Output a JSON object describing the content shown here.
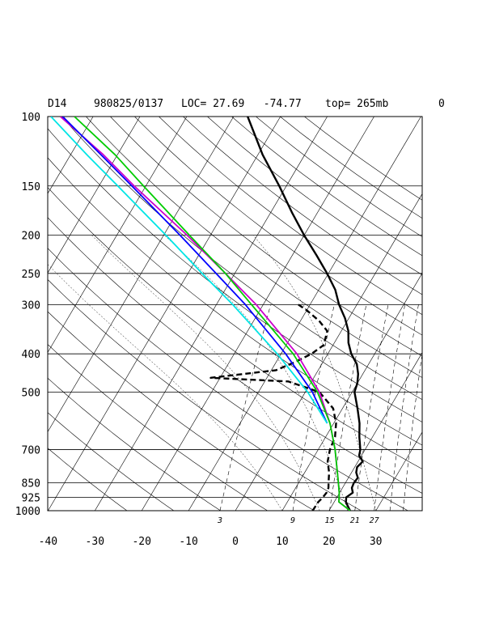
{
  "header": {
    "station": "D14",
    "datetime": "980825/0137",
    "loc_label": "LOC= 27.69   -74.77",
    "top_label": "top= 265mb",
    "extra": "0"
  },
  "chart_data": {
    "type": "line",
    "subtype": "skew-T log-P diagram",
    "title": "",
    "xlabel": "",
    "ylabel": "",
    "x_ticks": [
      -40,
      -30,
      -20,
      -10,
      0,
      10,
      20,
      30
    ],
    "x_tick_labels": [
      "-40",
      "-30",
      "-20",
      "-10",
      "0",
      "10",
      "20",
      "30"
    ],
    "y_ticks": [
      100,
      150,
      200,
      250,
      300,
      400,
      500,
      700,
      850,
      925,
      1000
    ],
    "y_tick_labels": [
      "100",
      "150",
      "200",
      "250",
      "300",
      "400",
      "500",
      "700",
      "850",
      "925",
      "1000"
    ],
    "xlim": [
      -40,
      40
    ],
    "ylim": [
      1000,
      100
    ],
    "y_scale": "log",
    "mixing_ratio_labels": [
      "3",
      "9",
      "15",
      "21",
      "27"
    ],
    "series": [
      {
        "role": "temperature",
        "color": "#000000",
        "style": "solid-thick",
        "points": [
          [
            1000,
            24.5
          ],
          [
            975,
            23.5
          ],
          [
            950,
            22.5
          ],
          [
            925,
            22.0
          ],
          [
            900,
            22.8
          ],
          [
            875,
            22.0
          ],
          [
            850,
            21.8
          ],
          [
            825,
            22.0
          ],
          [
            800,
            21.0
          ],
          [
            775,
            20.5
          ],
          [
            750,
            21.0
          ],
          [
            725,
            19.5
          ],
          [
            700,
            19.0
          ],
          [
            650,
            17.2
          ],
          [
            600,
            15.5
          ],
          [
            550,
            13.2
          ],
          [
            500,
            10.5
          ],
          [
            475,
            10.0
          ],
          [
            450,
            9.0
          ],
          [
            425,
            7.5
          ],
          [
            400,
            5.0
          ],
          [
            375,
            3.0
          ],
          [
            350,
            1.5
          ],
          [
            325,
            -0.8
          ],
          [
            300,
            -3.8
          ],
          [
            275,
            -6.5
          ],
          [
            250,
            -10.3
          ],
          [
            225,
            -14.8
          ],
          [
            200,
            -20.0
          ],
          [
            175,
            -25.5
          ],
          [
            150,
            -31.5
          ],
          [
            125,
            -39.0
          ],
          [
            100,
            -47.0
          ]
        ]
      },
      {
        "role": "dewpoint",
        "color": "#000000",
        "style": "dashed-thick",
        "points": [
          [
            1000,
            16.5
          ],
          [
            950,
            16.6
          ],
          [
            925,
            17.0
          ],
          [
            900,
            17.2
          ],
          [
            875,
            17.0
          ],
          [
            850,
            16.4
          ],
          [
            800,
            15.2
          ],
          [
            750,
            13.5
          ],
          [
            700,
            12.5
          ],
          [
            650,
            12.0
          ],
          [
            600,
            10.5
          ],
          [
            550,
            8.0
          ],
          [
            500,
            3.0
          ],
          [
            470,
            -5.0
          ],
          [
            460,
            -22.0
          ],
          [
            440,
            -9.0
          ],
          [
            420,
            -6.0
          ],
          [
            400,
            -3.5
          ],
          [
            380,
            -2.0
          ],
          [
            350,
            -3.0
          ],
          [
            330,
            -6.0
          ],
          [
            310,
            -10.0
          ],
          [
            300,
            -12.5
          ]
        ]
      },
      {
        "role": "parcel-1",
        "color": "#cc00cc",
        "style": "solid",
        "points": [
          [
            1000,
            24.5
          ],
          [
            950,
            21.0
          ],
          [
            900,
            19.9
          ],
          [
            850,
            18.5
          ],
          [
            700,
            13.6
          ],
          [
            600,
            9.2
          ],
          [
            500,
            3.0
          ],
          [
            400,
            -6.6
          ],
          [
            300,
            -21.5
          ],
          [
            250,
            -32.0
          ],
          [
            200,
            -45.0
          ],
          [
            150,
            -62.5
          ],
          [
            125,
            -73.0
          ],
          [
            100,
            -87.0
          ]
        ]
      },
      {
        "role": "parcel-2",
        "color": "#00cc00",
        "style": "solid",
        "points": [
          [
            1000,
            24.5
          ],
          [
            950,
            21.0
          ],
          [
            900,
            19.9
          ],
          [
            850,
            18.5
          ],
          [
            700,
            13.6
          ],
          [
            600,
            9.2
          ],
          [
            500,
            2.6
          ],
          [
            400,
            -7.4
          ],
          [
            300,
            -22.5
          ],
          [
            250,
            -32.0
          ],
          [
            200,
            -44.5
          ],
          [
            150,
            -60.5
          ],
          [
            125,
            -70.5
          ],
          [
            100,
            -84.0
          ]
        ]
      },
      {
        "role": "parcel-3",
        "color": "#0000ff",
        "style": "solid",
        "points": [
          [
            600,
            8.6
          ],
          [
            500,
            1.5
          ],
          [
            400,
            -9.0
          ],
          [
            300,
            -23.8
          ],
          [
            250,
            -34.0
          ],
          [
            200,
            -46.5
          ],
          [
            150,
            -63.0
          ],
          [
            125,
            -73.5
          ],
          [
            100,
            -86.5
          ]
        ]
      },
      {
        "role": "parcel-4",
        "color": "#00e5e5",
        "style": "solid",
        "points": [
          [
            600,
            8.6
          ],
          [
            500,
            0.5
          ],
          [
            400,
            -10.8
          ],
          [
            300,
            -26.5
          ],
          [
            250,
            -37.0
          ],
          [
            200,
            -49.5
          ],
          [
            150,
            -66.0
          ],
          [
            125,
            -76.5
          ],
          [
            100,
            -89.0
          ]
        ]
      }
    ],
    "grid": true,
    "legend": "none"
  }
}
